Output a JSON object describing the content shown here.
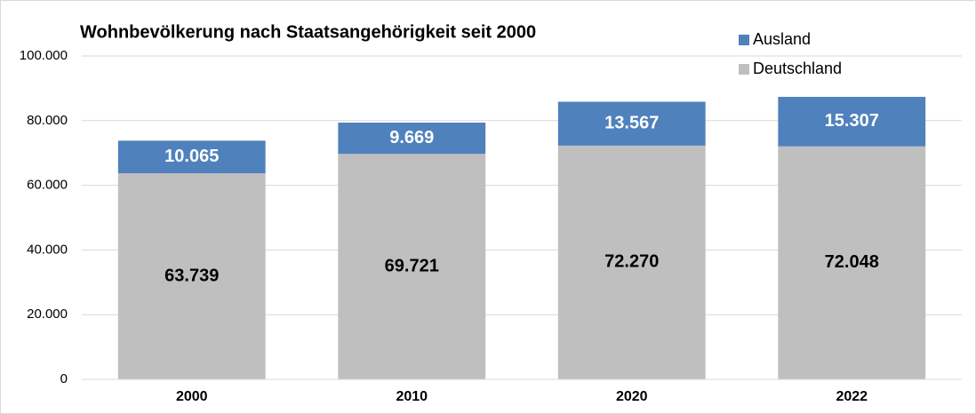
{
  "chart_data": {
    "type": "stacked_bar",
    "title": "Wohnbevölkerung nach Staatsangehörigkeit seit 2000",
    "categories": [
      "2000",
      "2010",
      "2020",
      "2022"
    ],
    "series": [
      {
        "name": "Deutschland",
        "color": "#bfbfbf",
        "values": [
          63739,
          69721,
          72270,
          72048
        ],
        "value_labels": [
          "63.739",
          "69.721",
          "72.270",
          "72.048"
        ]
      },
      {
        "name": "Ausland",
        "color": "#4f81bd",
        "values": [
          10065,
          9669,
          13567,
          15307
        ],
        "value_labels": [
          "10.065",
          "9.669",
          "13.567",
          "15.307"
        ]
      }
    ],
    "ylim": [
      0,
      100000
    ],
    "yticks": [
      0,
      {
        "value": 20000,
        "label": "20.000"
      },
      {
        "value": 40000,
        "label": "40.000"
      },
      {
        "value": 60000,
        "label": "60.000"
      },
      {
        "value": 80000,
        "label": "80.000"
      },
      {
        "value": 100000,
        "label": "100.000"
      }
    ],
    "grid": true,
    "legend": "top-right"
  }
}
